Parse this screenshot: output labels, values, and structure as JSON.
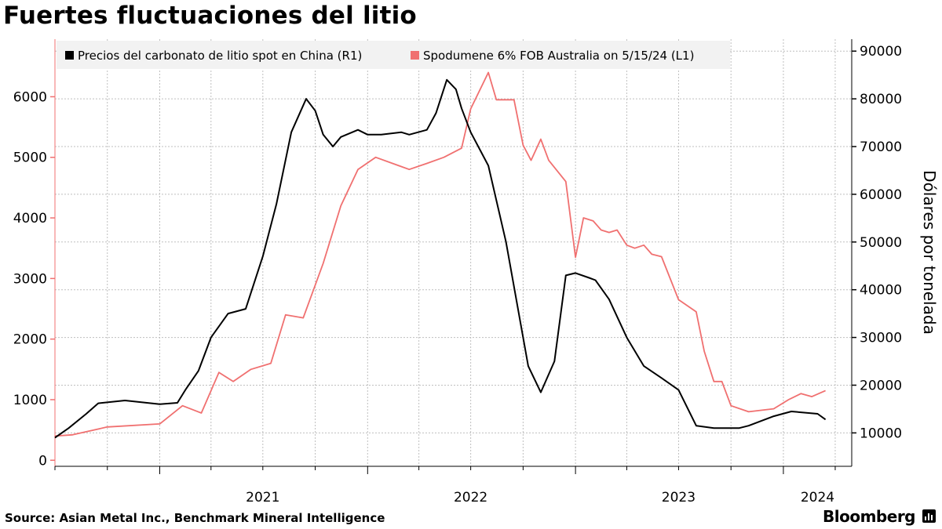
{
  "title": "Fuertes fluctuaciones del litio",
  "source": "Source: Asian Metal Inc., Benchmark Mineral Intelligence",
  "brand": "Bloomberg",
  "brand_icon": "bar-chart-icon",
  "colors": {
    "black_series": "#000000",
    "red_series": "#f07070",
    "grid": "#bfbfbf",
    "legend_bg": "#f2f2f2"
  },
  "chart_data": {
    "type": "line",
    "ylabel_right": "Dólares por tonelada",
    "x_ticks": [
      "2021",
      "2022",
      "2023",
      "2024"
    ],
    "xlim": [
      "2020-07-01",
      "2024-04-30"
    ],
    "y_left": {
      "ticks": [
        "0",
        "1000",
        "2000",
        "3000",
        "4000",
        "5000",
        "6000"
      ],
      "range": [
        -100,
        6950
      ]
    },
    "y_right": {
      "ticks": [
        "10000",
        "20000",
        "30000",
        "40000",
        "50000",
        "60000",
        "70000",
        "80000",
        "90000"
      ],
      "range": [
        3000,
        92500
      ]
    },
    "grid": true,
    "legend_position": "top-left",
    "series": [
      {
        "name": "Precios del carbonato de litio spot en China (R1)",
        "axis": "right",
        "color": "#000000",
        "x": [
          "2020-07-01",
          "2020-07-25",
          "2020-08-25",
          "2020-09-15",
          "2020-11-01",
          "2021-01-01",
          "2021-02-01",
          "2021-02-15",
          "2021-03-10",
          "2021-04-01",
          "2021-05-01",
          "2021-06-01",
          "2021-07-01",
          "2021-07-25",
          "2021-08-20",
          "2021-09-15",
          "2021-10-01",
          "2021-10-15",
          "2021-11-01",
          "2021-11-15",
          "2021-12-15",
          "2022-01-01",
          "2022-01-25",
          "2022-03-01",
          "2022-03-15",
          "2022-04-15",
          "2022-05-01",
          "2022-05-20",
          "2022-06-05",
          "2022-06-15",
          "2022-07-01",
          "2022-08-01",
          "2022-09-01",
          "2022-10-10",
          "2022-11-01",
          "2022-11-25",
          "2022-12-15",
          "2023-01-01",
          "2023-01-25",
          "2023-02-05",
          "2023-03-01",
          "2023-04-01",
          "2023-05-01",
          "2023-06-01",
          "2023-07-01",
          "2023-08-01",
          "2023-09-01",
          "2023-10-15",
          "2023-11-01",
          "2023-12-15",
          "2024-01-15",
          "2024-03-01",
          "2024-03-15"
        ],
        "y": [
          9000,
          11000,
          14000,
          16200,
          16800,
          16000,
          16300,
          19000,
          23000,
          30000,
          35000,
          36000,
          47000,
          58000,
          73000,
          80000,
          77500,
          72500,
          70000,
          72000,
          73500,
          72500,
          72500,
          73000,
          72500,
          73500,
          77000,
          84000,
          82000,
          78000,
          73000,
          66000,
          50000,
          24000,
          18500,
          25000,
          43000,
          43500,
          42500,
          42000,
          38000,
          30000,
          24000,
          21500,
          19000,
          11500,
          11000,
          11000,
          11500,
          13500,
          14500,
          14000,
          12800
        ]
      },
      {
        "name": "Spodumene 6% FOB Australia on 5/15/24 (L1)",
        "axis": "left",
        "color": "#f07070",
        "x": [
          "2020-07-01",
          "2020-08-01",
          "2020-10-01",
          "2021-01-01",
          "2021-02-10",
          "2021-03-15",
          "2021-04-15",
          "2021-05-10",
          "2021-06-10",
          "2021-07-15",
          "2021-08-10",
          "2021-09-10",
          "2021-10-15",
          "2021-11-15",
          "2021-12-15",
          "2022-01-15",
          "2022-03-15",
          "2022-04-15",
          "2022-05-15",
          "2022-06-15",
          "2022-07-01",
          "2022-08-01",
          "2022-08-15",
          "2022-09-01",
          "2022-09-15",
          "2022-10-01",
          "2022-10-15",
          "2022-11-01",
          "2022-11-15",
          "2022-12-15",
          "2023-01-01",
          "2023-01-15",
          "2023-02-01",
          "2023-02-15",
          "2023-03-01",
          "2023-03-15",
          "2023-04-01",
          "2023-04-15",
          "2023-05-01",
          "2023-05-15",
          "2023-06-01",
          "2023-07-01",
          "2023-08-01",
          "2023-08-15",
          "2023-09-01",
          "2023-09-15",
          "2023-10-01",
          "2023-11-01",
          "2023-12-15",
          "2024-01-10",
          "2024-02-01",
          "2024-02-20",
          "2024-03-15"
        ],
        "y": [
          400,
          420,
          550,
          600,
          900,
          780,
          1450,
          1300,
          1500,
          1600,
          2400,
          2350,
          3250,
          4200,
          4800,
          5000,
          4800,
          4900,
          5000,
          5150,
          5800,
          6400,
          5950,
          5950,
          5950,
          5200,
          4950,
          5300,
          4950,
          4600,
          3350,
          4000,
          3950,
          3800,
          3760,
          3800,
          3550,
          3500,
          3550,
          3400,
          3360,
          2650,
          2450,
          1800,
          1300,
          1300,
          900,
          800,
          850,
          1000,
          1100,
          1050,
          1150
        ]
      }
    ]
  }
}
